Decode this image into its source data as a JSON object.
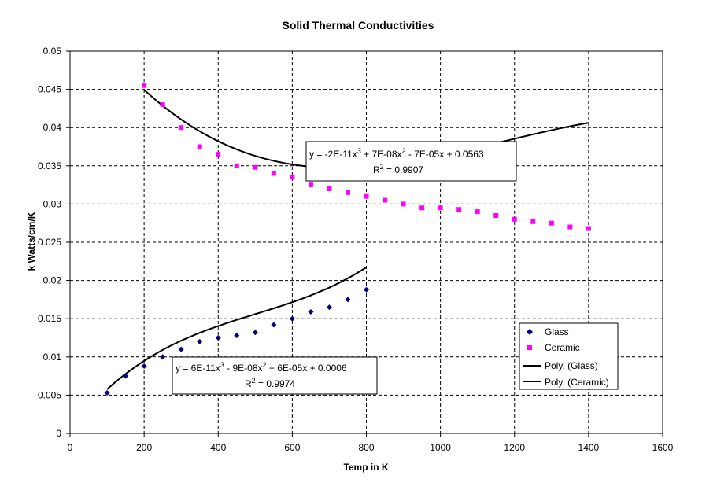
{
  "chart_data": {
    "type": "scatter",
    "title": "Solid Thermal Conductivities",
    "xlabel": "Temp in K",
    "ylabel": "k Watts/cm/K",
    "xlim": [
      0,
      1600
    ],
    "ylim": [
      0,
      0.05
    ],
    "x_ticks": [
      0,
      200,
      400,
      600,
      800,
      1000,
      1200,
      1400,
      1600
    ],
    "y_ticks": [
      0,
      0.005,
      0.01,
      0.015,
      0.02,
      0.025,
      0.03,
      0.035,
      0.04,
      0.045,
      0.05
    ],
    "x_tick_labels": [
      "0",
      "200",
      "400",
      "600",
      "800",
      "1000",
      "1200",
      "1400",
      "1600"
    ],
    "y_tick_labels": [
      "0",
      "0.005",
      "0.01",
      "0.015",
      "0.02",
      "0.025",
      "0.03",
      "0.035",
      "0.04",
      "0.045",
      "0.05"
    ],
    "grid": true,
    "legend_position": "right",
    "series": [
      {
        "name": "Glass",
        "marker": "diamond",
        "color": "#000080",
        "x": [
          100,
          150,
          200,
          250,
          300,
          350,
          400,
          450,
          500,
          550,
          600,
          650,
          700,
          750,
          800
        ],
        "y": [
          0.0053,
          0.0075,
          0.0088,
          0.01,
          0.011,
          0.012,
          0.0125,
          0.0128,
          0.0132,
          0.0142,
          0.015,
          0.0159,
          0.0165,
          0.0175,
          0.0188
        ]
      },
      {
        "name": "Ceramic",
        "marker": "square",
        "color": "#FF00FF",
        "x": [
          200,
          250,
          300,
          350,
          400,
          450,
          500,
          550,
          600,
          650,
          700,
          750,
          800,
          850,
          900,
          950,
          1000,
          1050,
          1100,
          1150,
          1200,
          1250,
          1300,
          1350,
          1400
        ],
        "y": [
          0.0455,
          0.043,
          0.04,
          0.0375,
          0.0365,
          0.035,
          0.0348,
          0.034,
          0.0335,
          0.0325,
          0.032,
          0.0315,
          0.031,
          0.0305,
          0.03,
          0.0295,
          0.0295,
          0.0293,
          0.029,
          0.0285,
          0.028,
          0.0277,
          0.0275,
          0.027,
          0.0268
        ]
      }
    ],
    "trendlines": [
      {
        "name": "Poly. (Glass)",
        "color": "#000000",
        "coefficients": [
          6e-11,
          -9e-08,
          6e-05,
          0.0006
        ],
        "x_range": [
          100,
          800
        ],
        "equation": "y = 6E-11x3 - 9E-08x2 + 6E-05x + 0.0006",
        "equation_parts": [
          "y = 6E-11x",
          "3",
          " - 9E-08x",
          "2",
          " + 6E-05x + 0.0006"
        ],
        "r2_label": "R",
        "r2_sup": "2",
        "r2_value": " = 0.9974"
      },
      {
        "name": "Poly. (Ceramic)",
        "color": "#000000",
        "coefficients": [
          -2e-11,
          7e-08,
          -7e-05,
          0.0563
        ],
        "x_range": [
          200,
          1400
        ],
        "equation": "y = -2E-11x3 + 7E-08x2 - 7E-05x + 0.0563",
        "equation_parts": [
          "y = -2E-11x",
          "3",
          " + 7E-08x",
          "2",
          " - 7E-05x + 0.0563"
        ],
        "r2_label": "R",
        "r2_sup": "2",
        "r2_value": " = 0.9907"
      }
    ],
    "legend": [
      "Glass",
      "Ceramic",
      "Poly. (Glass)",
      "Poly. (Ceramic)"
    ]
  }
}
